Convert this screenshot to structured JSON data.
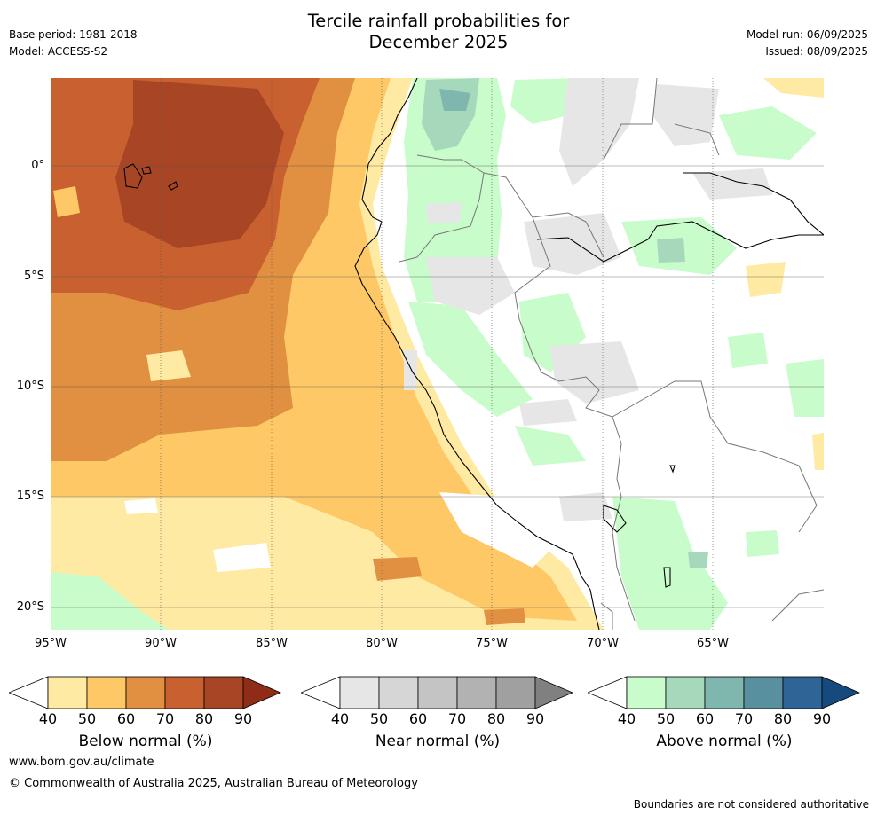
{
  "header": {
    "title_line1": "Tercile rainfall probabilities for",
    "title_line2": "December 2025",
    "base_period": "Base period: 1981-2018",
    "model": "Model: ACCESS-S2",
    "model_run": "Model run: 06/09/2025",
    "issued": "Issued: 08/09/2025"
  },
  "map": {
    "lat_labels": [
      "0°",
      "5°S",
      "10°S",
      "15°S",
      "20°S"
    ],
    "lon_labels": [
      "95°W",
      "90°W",
      "85°W",
      "80°W",
      "75°W",
      "70°W",
      "65°W"
    ]
  },
  "colorbars": [
    {
      "label": "Below normal (%)",
      "ticks": [
        "40",
        "50",
        "60",
        "70",
        "80",
        "90"
      ],
      "colors": [
        "#ffffff",
        "#ffeaa3",
        "#fdc865",
        "#e09040",
        "#c86030",
        "#a84524",
        "#8f2c18"
      ]
    },
    {
      "label": "Near normal (%)",
      "ticks": [
        "40",
        "50",
        "60",
        "70",
        "80",
        "90"
      ],
      "colors": [
        "#ffffff",
        "#e6e6e6",
        "#d6d6d6",
        "#c4c4c4",
        "#b2b2b2",
        "#a0a0a0",
        "#808080"
      ]
    },
    {
      "label": "Above normal (%)",
      "ticks": [
        "40",
        "50",
        "60",
        "70",
        "80",
        "90"
      ],
      "colors": [
        "#ffffff",
        "#c8fcca",
        "#a6d9bb",
        "#7fb7ae",
        "#5990a0",
        "#2f6596",
        "#16497d"
      ]
    }
  ],
  "footer": {
    "url": "www.bom.gov.au/climate",
    "copyright": "© Commonwealth of Australia 2025, Australian Bureau of Meteorology",
    "disclaimer": "Boundaries are not considered authoritative"
  }
}
